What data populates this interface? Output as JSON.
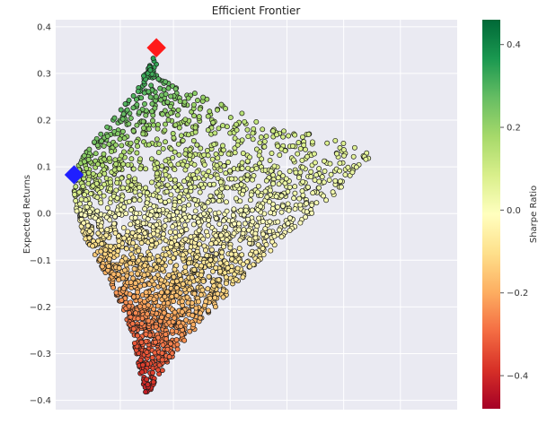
{
  "chart_data": {
    "type": "scatter",
    "title": "Efficient Frontier",
    "xlabel": "",
    "ylabel": "Expected Returns",
    "ylim": [
      -0.42,
      0.415
    ],
    "yticks": [
      "−0.4",
      "−0.3",
      "−0.2",
      "−0.1",
      "0.0",
      "0.1",
      "0.2",
      "0.3",
      "0.4"
    ],
    "ytick_values": [
      -0.4,
      -0.3,
      -0.2,
      -0.1,
      0.0,
      0.1,
      0.2,
      0.3,
      0.4
    ],
    "x_tick_labels_visible": false,
    "grid": true,
    "colormap": "RdYlGn",
    "colorbar": {
      "label": "Sharpe Ratio",
      "range": [
        -0.48,
        0.46
      ],
      "ticks": [
        "−0.4",
        "−0.2",
        "0.0",
        "0.2",
        "0.4"
      ],
      "tick_values": [
        -0.4,
        -0.2,
        0.0,
        0.2,
        0.4
      ]
    },
    "cloud": {
      "description_free": true,
      "point_count": 2600,
      "envelope_y": [
        [
          -0.395,
          0.56,
          0.56
        ],
        [
          -0.35,
          0.52,
          0.64
        ],
        [
          -0.3,
          0.49,
          0.76
        ],
        [
          -0.25,
          0.45,
          0.9
        ],
        [
          -0.2,
          0.39,
          1.05
        ],
        [
          -0.15,
          0.31,
          1.2
        ],
        [
          -0.1,
          0.22,
          1.36
        ],
        [
          -0.05,
          0.12,
          1.55
        ],
        [
          0.0,
          0.07,
          1.73
        ],
        [
          0.05,
          0.05,
          1.92
        ],
        [
          0.1,
          0.07,
          2.05
        ],
        [
          0.125,
          0.12,
          2.18
        ],
        [
          0.15,
          0.18,
          1.96
        ],
        [
          0.2,
          0.32,
          1.4
        ],
        [
          0.25,
          0.45,
          0.95
        ],
        [
          0.3,
          0.55,
          0.62
        ],
        [
          0.34,
          0.62,
          0.66
        ]
      ]
    },
    "markers": [
      {
        "kind": "max-sharpe",
        "color": "#ff1a1a",
        "x": 0.63,
        "y": 0.355
      },
      {
        "kind": "min-volatility",
        "color": "#1f1fff",
        "x": 0.05,
        "y": 0.083
      }
    ],
    "xlim": [
      -0.08,
      2.75
    ]
  }
}
